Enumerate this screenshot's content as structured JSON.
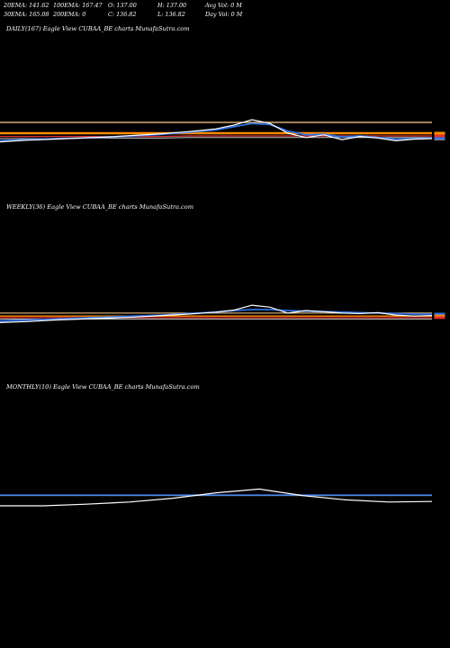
{
  "stats": {
    "row1": [
      "20EMA: 141.62",
      "100EMA: 167.47",
      "O: 137.00",
      "H: 137.00",
      "Avg Vol: 0  M"
    ],
    "row2": [
      "30EMA: 165.08",
      "200EMA: 0",
      "C: 136.82",
      "L: 136.82",
      "Day Vol: 0  M"
    ]
  },
  "colors": {
    "price": "#ffffff",
    "ema_blue": "#2f6fe0",
    "ema_orange": "#ff8c00",
    "ema_red": "#e03030",
    "ema_grey": "#c8c8c8",
    "ema_light_orange": "#ffd090"
  },
  "chart_data": [
    {
      "type": "line",
      "title": "DAILY(167) Eagle   View  CUBAA_BE charts MunafaSutra.com",
      "x": [
        0,
        30,
        60,
        90,
        120,
        150,
        180,
        210,
        240,
        260,
        280,
        300,
        320,
        340,
        360,
        380,
        400,
        420,
        440,
        460,
        480
      ],
      "series": [
        {
          "values": [
            4,
            7,
            9,
            11,
            13,
            16,
            19,
            23,
            28,
            35,
            45,
            38,
            20,
            12,
            17,
            8,
            14,
            11,
            6,
            9,
            10
          ]
        },
        {
          "values": [
            6,
            8,
            10,
            11,
            13,
            15,
            18,
            22,
            26,
            32,
            38,
            36,
            24,
            17,
            18,
            13,
            15,
            12,
            9,
            10,
            11
          ]
        },
        {
          "values": [
            20,
            20,
            20,
            20,
            20,
            20,
            20,
            20,
            20,
            20,
            20,
            20,
            20,
            20,
            20,
            20,
            20,
            20,
            20,
            20,
            20
          ]
        },
        {
          "values": [
            14,
            14,
            14,
            14,
            14,
            14,
            14,
            15,
            15,
            15,
            15,
            15,
            15,
            15,
            15,
            15,
            15,
            15,
            15,
            15,
            15
          ]
        },
        {
          "values": [
            40,
            40,
            40,
            40,
            40,
            40,
            40,
            40,
            40,
            40,
            40,
            40,
            40,
            40,
            40,
            40,
            40,
            40,
            40,
            40,
            40
          ]
        },
        {
          "values": [
            10,
            10,
            10,
            11,
            11,
            11,
            11,
            12,
            12,
            12,
            12,
            12,
            12,
            12,
            12,
            12,
            12,
            12,
            12,
            12,
            12
          ]
        }
      ]
    },
    {
      "type": "line",
      "title": "WEEKLY(36) Eagle   View  CUBAA_BE charts MunafaSutra.com",
      "x": [
        0,
        30,
        60,
        90,
        120,
        150,
        180,
        210,
        240,
        260,
        280,
        300,
        320,
        340,
        360,
        380,
        400,
        420,
        440,
        460,
        480
      ],
      "series": [
        {
          "values": [
            3,
            5,
            8,
            10,
            12,
            14,
            17,
            20,
            24,
            28,
            38,
            34,
            22,
            27,
            25,
            22,
            21,
            23,
            18,
            16,
            17
          ]
        },
        {
          "values": [
            6,
            8,
            10,
            12,
            14,
            16,
            18,
            21,
            24,
            27,
            29,
            29,
            27,
            26,
            25,
            24,
            23,
            22,
            21,
            20,
            20
          ]
        },
        {
          "values": [
            16,
            16,
            16,
            16,
            16,
            16,
            16,
            16,
            16,
            16,
            16,
            16,
            16,
            16,
            16,
            16,
            16,
            16,
            16,
            16,
            16
          ]
        },
        {
          "values": [
            13,
            13,
            13,
            13,
            13,
            13,
            13,
            13,
            13,
            13,
            13,
            13,
            13,
            13,
            13,
            13,
            13,
            13,
            13,
            13,
            13
          ]
        },
        {
          "values": [
            22,
            22,
            22,
            22,
            22,
            22,
            22,
            22,
            22,
            22,
            22,
            22,
            22,
            22,
            22,
            22,
            22,
            22,
            22,
            22,
            22
          ]
        },
        {
          "values": [
            10,
            10,
            10,
            10,
            10,
            10,
            10,
            10,
            10,
            10,
            10,
            10,
            10,
            10,
            10,
            10,
            10,
            10,
            10,
            10,
            10
          ]
        }
      ]
    },
    {
      "type": "line",
      "title": "MONTHLY(10) Eagle   View  CUBAA_BE charts MunafaSutra.com",
      "x": [
        0,
        48,
        96,
        144,
        192,
        240,
        288,
        336,
        384,
        432,
        480
      ],
      "series": [
        {
          "values": [
            0,
            0,
            3,
            7,
            14,
            24,
            31,
            19,
            11,
            7,
            8
          ]
        },
        {
          "values": [
            20,
            20,
            20,
            20,
            20,
            20,
            20,
            20,
            20,
            20,
            20
          ]
        },
        {
          "values": [
            19,
            19,
            19,
            19,
            19,
            19,
            19,
            19,
            19,
            19,
            19
          ]
        }
      ]
    }
  ]
}
